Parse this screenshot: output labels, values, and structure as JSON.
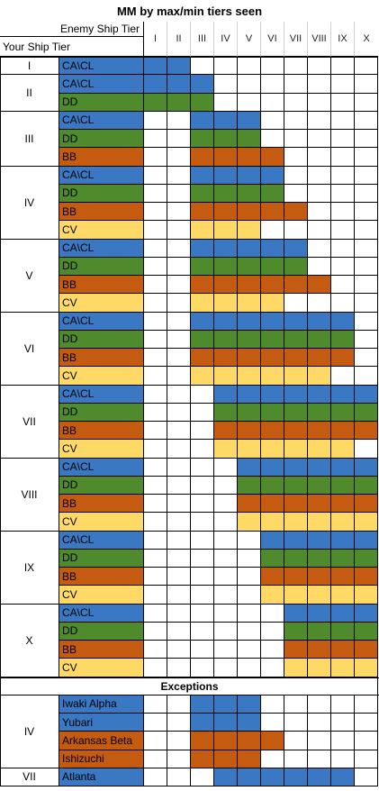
{
  "title": "MM by max/min tiers seen",
  "header": {
    "enemy_label": "Enemy Ship Tier",
    "your_label": "Your Ship Tier",
    "tiers": [
      "I",
      "II",
      "III",
      "IV",
      "V",
      "VI",
      "VII",
      "VIII",
      "IX",
      "X"
    ]
  },
  "colors": {
    "CA\\CL": "#3a78c3",
    "DD": "#4f8a2c",
    "BB": "#c55a11",
    "CV": "#ffd966",
    "empty": "#ffffff"
  },
  "groups": [
    {
      "tier": "I",
      "rows": [
        {
          "class": "CA\\CL",
          "min": 1,
          "max": 2
        }
      ]
    },
    {
      "tier": "II",
      "rows": [
        {
          "class": "CA\\CL",
          "min": 1,
          "max": 3
        },
        {
          "class": "DD",
          "min": 1,
          "max": 3
        }
      ]
    },
    {
      "tier": "III",
      "rows": [
        {
          "class": "CA\\CL",
          "min": 3,
          "max": 5
        },
        {
          "class": "DD",
          "min": 3,
          "max": 5
        },
        {
          "class": "BB",
          "min": 3,
          "max": 6
        }
      ]
    },
    {
      "tier": "IV",
      "rows": [
        {
          "class": "CA\\CL",
          "min": 3,
          "max": 6
        },
        {
          "class": "DD",
          "min": 3,
          "max": 6
        },
        {
          "class": "BB",
          "min": 3,
          "max": 7
        },
        {
          "class": "CV",
          "min": 3,
          "max": 5
        }
      ]
    },
    {
      "tier": "V",
      "rows": [
        {
          "class": "CA\\CL",
          "min": 3,
          "max": 7
        },
        {
          "class": "DD",
          "min": 3,
          "max": 7
        },
        {
          "class": "BB",
          "min": 3,
          "max": 8
        },
        {
          "class": "CV",
          "min": 3,
          "max": 6
        }
      ]
    },
    {
      "tier": "VI",
      "rows": [
        {
          "class": "CA\\CL",
          "min": 3,
          "max": 9
        },
        {
          "class": "DD",
          "min": 3,
          "max": 9
        },
        {
          "class": "BB",
          "min": 3,
          "max": 9
        },
        {
          "class": "CV",
          "min": 3,
          "max": 8
        }
      ]
    },
    {
      "tier": "VII",
      "rows": [
        {
          "class": "CA\\CL",
          "min": 4,
          "max": 10
        },
        {
          "class": "DD",
          "min": 4,
          "max": 10
        },
        {
          "class": "BB",
          "min": 4,
          "max": 10
        },
        {
          "class": "CV",
          "min": 4,
          "max": 9
        }
      ]
    },
    {
      "tier": "VIII",
      "rows": [
        {
          "class": "CA\\CL",
          "min": 5,
          "max": 10
        },
        {
          "class": "DD",
          "min": 5,
          "max": 10
        },
        {
          "class": "BB",
          "min": 5,
          "max": 10
        },
        {
          "class": "CV",
          "min": 5,
          "max": 10
        }
      ]
    },
    {
      "tier": "IX",
      "rows": [
        {
          "class": "CA\\CL",
          "min": 6,
          "max": 10
        },
        {
          "class": "DD",
          "min": 6,
          "max": 10
        },
        {
          "class": "BB",
          "min": 6,
          "max": 10
        },
        {
          "class": "CV",
          "min": 6,
          "max": 10
        }
      ]
    },
    {
      "tier": "X",
      "rows": [
        {
          "class": "CA\\CL",
          "min": 7,
          "max": 10
        },
        {
          "class": "DD",
          "min": 7,
          "max": 10
        },
        {
          "class": "BB",
          "min": 7,
          "max": 10
        },
        {
          "class": "CV",
          "min": 7,
          "max": 10
        }
      ]
    }
  ],
  "exceptions_title": "Exceptions",
  "exceptions": [
    {
      "tier": "IV",
      "rows": [
        {
          "class": "Iwaki Alpha",
          "type": "CA\\CL",
          "min": 3,
          "max": 5
        },
        {
          "class": "Yubari",
          "type": "CA\\CL",
          "min": 3,
          "max": 5
        },
        {
          "class": "Arkansas Beta",
          "type": "BB",
          "min": 3,
          "max": 6
        },
        {
          "class": "Ishizuchi",
          "type": "BB",
          "min": 3,
          "max": 5
        }
      ]
    },
    {
      "tier": "VII",
      "rows": [
        {
          "class": "Atlanta",
          "type": "CA\\CL",
          "min": 4,
          "max": 9
        }
      ]
    }
  ]
}
